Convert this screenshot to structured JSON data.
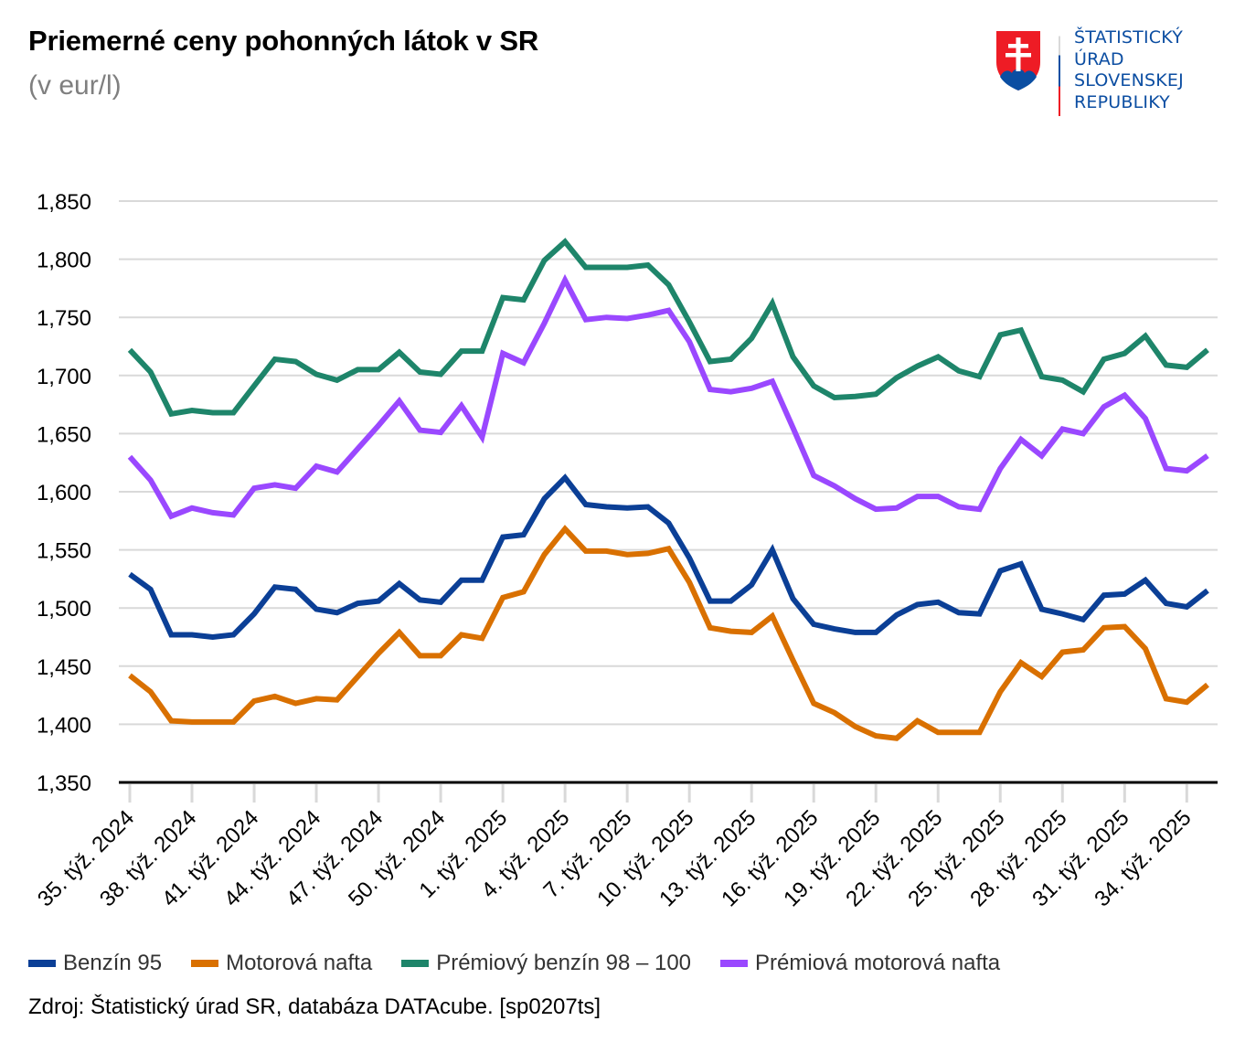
{
  "header": {
    "title": "Priemerné ceny pohonných látok v SR",
    "subtitle": "(v eur/l)"
  },
  "logo": {
    "lines": [
      "ŠTATISTICKÝ",
      "ÚRAD",
      "SLOVENSKEJ",
      "REPUBLIKY"
    ],
    "colors": {
      "red": "#ee1c25",
      "blue": "#0b4ea2",
      "white": "#ffffff"
    }
  },
  "source": "Zdroj: Štatistický úrad SR, databáza DATAcube. [sp0207ts]",
  "chart_data": {
    "type": "line",
    "title": "Priemerné ceny pohonných látok v SR",
    "subtitle": "(v eur/l)",
    "xlabel": "",
    "ylabel": "",
    "ylim": [
      1.35,
      1.85
    ],
    "y_ticks": [
      1.35,
      1.4,
      1.45,
      1.5,
      1.55,
      1.6,
      1.65,
      1.7,
      1.75,
      1.8,
      1.85
    ],
    "y_tick_labels": [
      "1,350",
      "1,400",
      "1,450",
      "1,500",
      "1,550",
      "1,600",
      "1,650",
      "1,700",
      "1,750",
      "1,800",
      "1,850"
    ],
    "x_count": 53,
    "x_tick_every": 3,
    "x_tick_labels": [
      "35. týž. 2024",
      "38. týž. 2024",
      "41. týž. 2024",
      "44. týž. 2024",
      "47. týž. 2024",
      "50. týž. 2024",
      "1. týž. 2025",
      "4. týž. 2025",
      "7. týž. 2025",
      "10. týž. 2025",
      "13. týž. 2025",
      "16. týž. 2025",
      "19. týž. 2025",
      "22. týž. 2025",
      "25. týž. 2025",
      "28. týž. 2025",
      "31. týž. 2025",
      "34. týž. 2025"
    ],
    "grid": true,
    "legend_position": "bottom-left",
    "series": [
      {
        "name": "Benzín 95",
        "color": "#0b3f96",
        "values": [
          1.529,
          1.516,
          1.477,
          1.477,
          1.475,
          1.477,
          1.495,
          1.518,
          1.516,
          1.499,
          1.496,
          1.504,
          1.506,
          1.521,
          1.507,
          1.505,
          1.524,
          1.524,
          1.561,
          1.563,
          1.594,
          1.612,
          1.589,
          1.587,
          1.586,
          1.587,
          1.573,
          1.543,
          1.506,
          1.506,
          1.52,
          1.55,
          1.508,
          1.486,
          1.482,
          1.479,
          1.479,
          1.494,
          1.503,
          1.505,
          1.496,
          1.495,
          1.532,
          1.538,
          1.499,
          1.495,
          1.49,
          1.511,
          1.512,
          1.524,
          1.504,
          1.501,
          1.515
        ]
      },
      {
        "name": "Motorová nafta",
        "color": "#d97000",
        "values": [
          1.442,
          1.428,
          1.403,
          1.402,
          1.402,
          1.402,
          1.42,
          1.424,
          1.418,
          1.422,
          1.421,
          1.441,
          1.461,
          1.479,
          1.459,
          1.459,
          1.477,
          1.474,
          1.509,
          1.514,
          1.546,
          1.568,
          1.549,
          1.549,
          1.546,
          1.547,
          1.551,
          1.522,
          1.483,
          1.48,
          1.479,
          1.493,
          1.455,
          1.418,
          1.41,
          1.398,
          1.39,
          1.388,
          1.403,
          1.393,
          1.393,
          1.393,
          1.428,
          1.453,
          1.441,
          1.462,
          1.464,
          1.483,
          1.484,
          1.465,
          1.422,
          1.419,
          1.434
        ]
      },
      {
        "name": "Prémiový benzín 98 – 100",
        "color": "#1e856a",
        "values": [
          1.722,
          1.703,
          1.667,
          1.67,
          1.668,
          1.668,
          1.691,
          1.714,
          1.712,
          1.701,
          1.696,
          1.705,
          1.705,
          1.72,
          1.703,
          1.701,
          1.721,
          1.721,
          1.767,
          1.765,
          1.799,
          1.815,
          1.793,
          1.793,
          1.793,
          1.795,
          1.778,
          1.746,
          1.712,
          1.714,
          1.732,
          1.762,
          1.716,
          1.691,
          1.681,
          1.682,
          1.684,
          1.698,
          1.708,
          1.716,
          1.704,
          1.699,
          1.735,
          1.739,
          1.699,
          1.696,
          1.686,
          1.714,
          1.719,
          1.734,
          1.709,
          1.707,
          1.722
        ]
      },
      {
        "name": "Prémiová motorová nafta",
        "color": "#9a48ff",
        "values": [
          1.63,
          1.61,
          1.579,
          1.586,
          1.582,
          1.58,
          1.603,
          1.606,
          1.603,
          1.622,
          1.617,
          1.637,
          1.657,
          1.678,
          1.653,
          1.651,
          1.674,
          1.647,
          1.719,
          1.711,
          1.745,
          1.782,
          1.748,
          1.75,
          1.749,
          1.752,
          1.756,
          1.729,
          1.688,
          1.686,
          1.689,
          1.695,
          1.655,
          1.614,
          1.605,
          1.594,
          1.585,
          1.586,
          1.596,
          1.596,
          1.587,
          1.585,
          1.62,
          1.645,
          1.631,
          1.654,
          1.65,
          1.673,
          1.683,
          1.663,
          1.62,
          1.618,
          1.631
        ]
      }
    ]
  }
}
